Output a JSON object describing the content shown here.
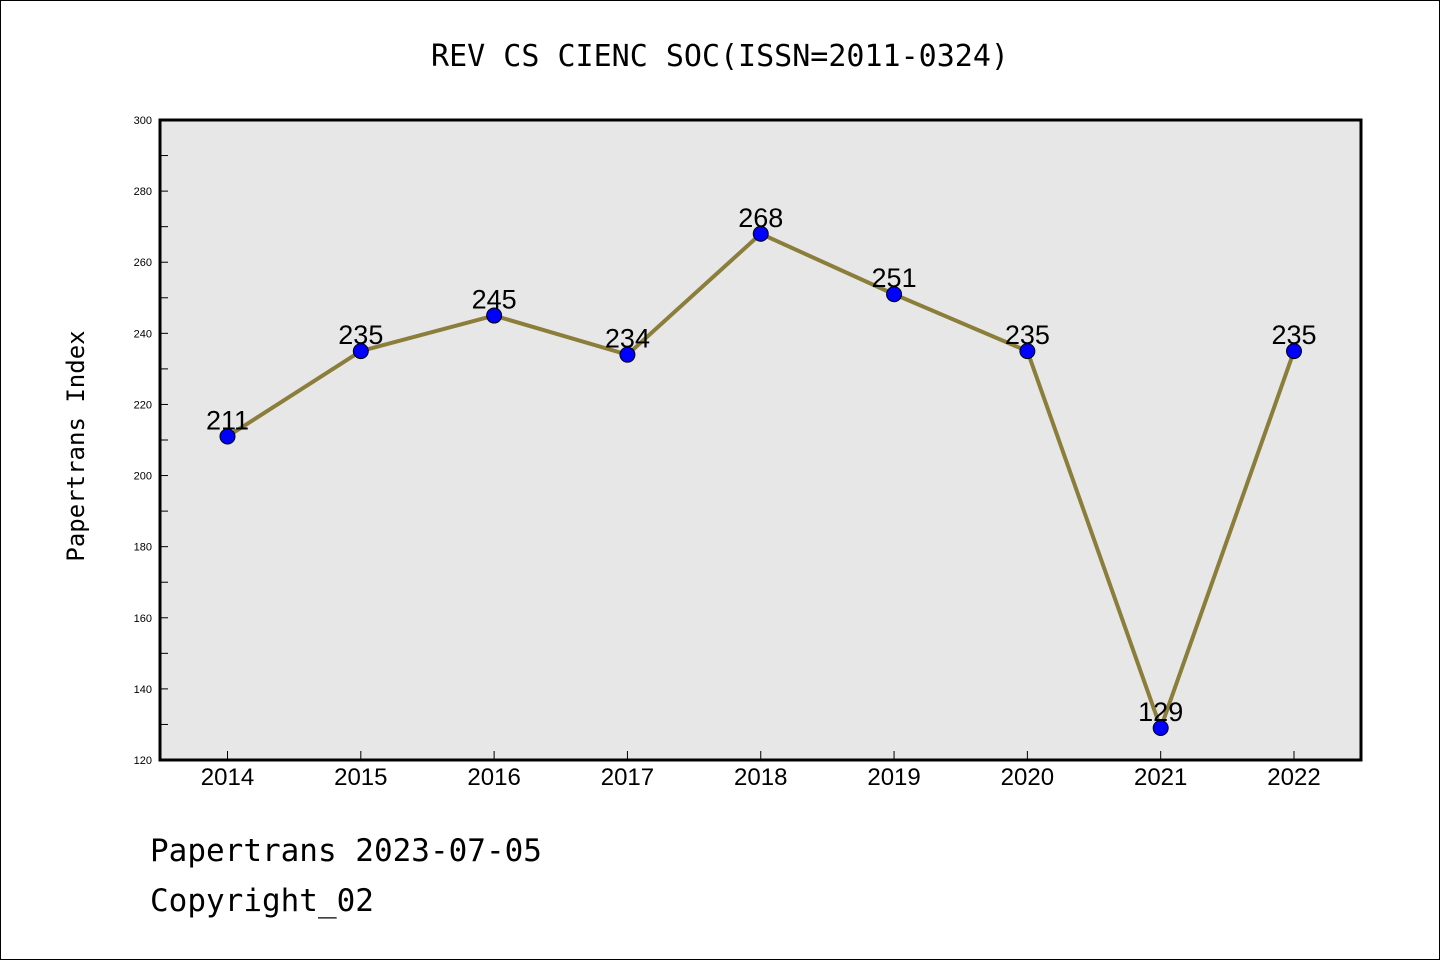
{
  "chart_data": {
    "type": "line",
    "title": "REV CS CIENC SOC(ISSN=2011-0324)",
    "ylabel": "Papertrans Index",
    "xlabel": "",
    "categories": [
      "2014",
      "2015",
      "2016",
      "2017",
      "2018",
      "2019",
      "2020",
      "2021",
      "2022"
    ],
    "values": [
      211,
      235,
      245,
      234,
      268,
      251,
      235,
      129,
      235
    ],
    "ylim": [
      120,
      300
    ],
    "yticks": [
      120,
      140,
      160,
      180,
      200,
      220,
      240,
      260,
      280,
      300
    ],
    "grid": false,
    "colors": {
      "line": "#8b7d3a",
      "marker": "#0000ff",
      "plot_background": "#e7e7e7"
    }
  },
  "footer": {
    "date_line": "Papertrans 2023-07-05",
    "copyright": "Copyright_02"
  }
}
